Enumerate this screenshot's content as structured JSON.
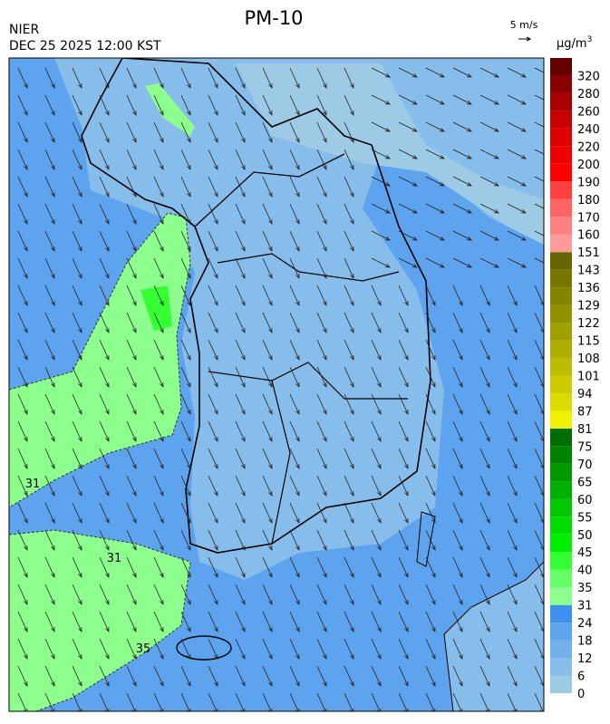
{
  "header": {
    "title": "PM-10",
    "agency": "NIER",
    "timestamp": "DEC 25 2025 12:00 KST",
    "wind_scale": "5 m/s"
  },
  "colorbar": {
    "unit": "µg/m",
    "unit_superscript": "3",
    "levels": [
      0,
      6,
      12,
      18,
      24,
      31,
      35,
      40,
      45,
      50,
      55,
      60,
      65,
      70,
      75,
      81,
      87,
      94,
      101,
      108,
      115,
      122,
      129,
      136,
      143,
      151,
      160,
      170,
      180,
      190,
      200,
      220,
      240,
      260,
      280,
      320
    ],
    "colors": [
      "#9dcbe6",
      "#86bdea",
      "#72b0ec",
      "#5ea3ee",
      "#3d8ff0",
      "#8cff8c",
      "#66ff66",
      "#33ff33",
      "#00ee00",
      "#00dd00",
      "#00c800",
      "#00b000",
      "#009a00",
      "#008400",
      "#006e00",
      "#f0f000",
      "#dcdc00",
      "#cccc00",
      "#bcbc00",
      "#aeae00",
      "#a0a000",
      "#929200",
      "#848400",
      "#767600",
      "#666600",
      "#ff9a9a",
      "#ff8080",
      "#ff6464",
      "#ff4040",
      "#ff0000",
      "#ec0000",
      "#dc0000",
      "#c80000",
      "#aa0000",
      "#880000",
      "#660000"
    ]
  },
  "contour_labels": [
    "31",
    "35",
    "31"
  ]
}
